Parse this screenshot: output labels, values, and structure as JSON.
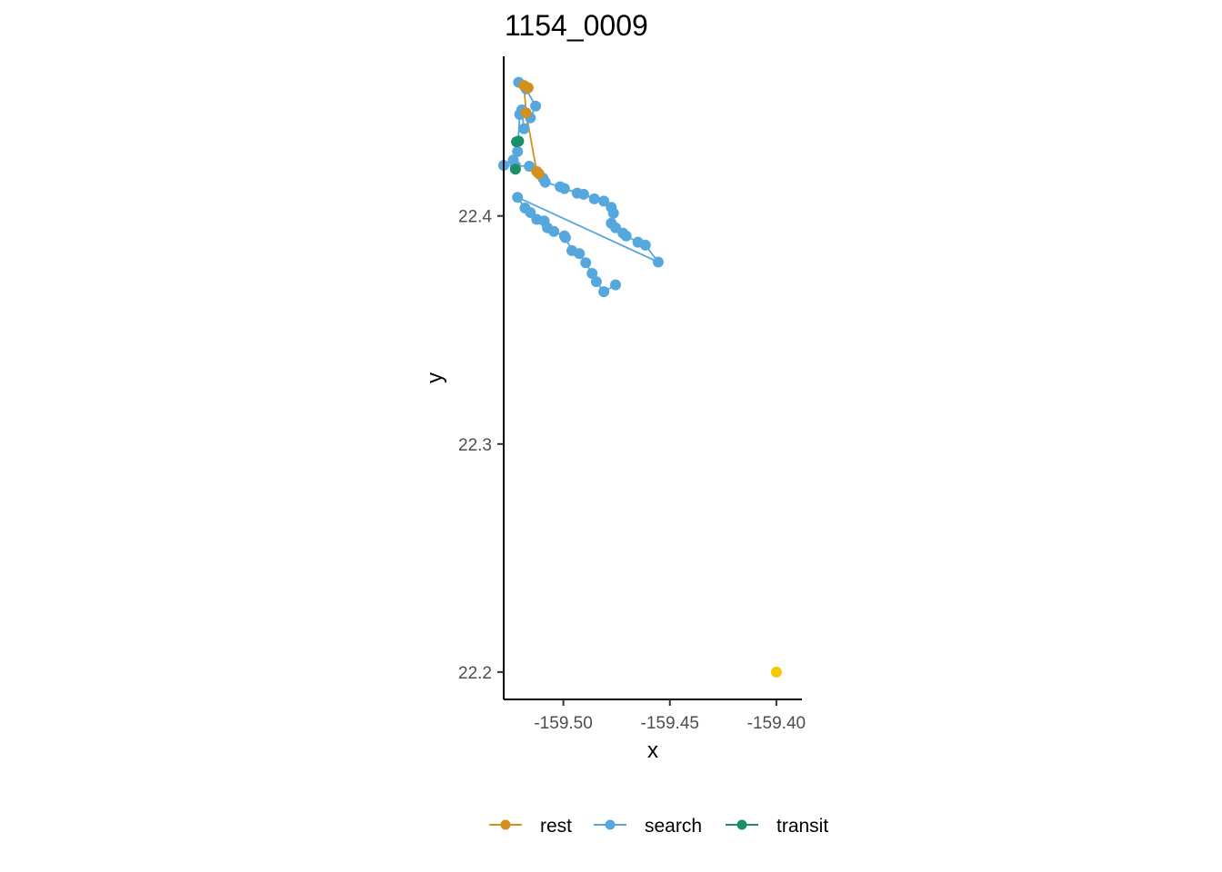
{
  "chart_data": {
    "type": "scatter",
    "title": "1154_0009",
    "xlabel": "x",
    "ylabel": "y",
    "xlim": [
      -159.528,
      -159.388
    ],
    "ylim": [
      22.188,
      22.47
    ],
    "x_ticks": [
      -159.5,
      -159.45,
      -159.4
    ],
    "x_tick_labels": [
      "-159.50",
      "-159.45",
      "-159.40"
    ],
    "y_ticks": [
      22.2,
      22.3,
      22.4
    ],
    "y_tick_labels": [
      "22.2",
      "22.3",
      "22.4"
    ],
    "grid": false,
    "legend_position": "bottom",
    "colors": {
      "rest": "#D4901E",
      "search": "#56A7DE",
      "transit": "#1A8F6A",
      "marker": "#F5C800"
    },
    "series": [
      {
        "name": "search",
        "color": "#56A7DE",
        "points": [
          [
            -159.521,
            22.4586
          ],
          [
            -159.5175,
            22.4557
          ],
          [
            -159.513,
            22.4482
          ],
          [
            -159.5155,
            22.443
          ],
          [
            -159.5185,
            22.4382
          ],
          [
            -159.5195,
            22.4465
          ],
          [
            -159.5205,
            22.4445
          ],
          [
            -159.5215,
            22.4282
          ],
          [
            -159.5235,
            22.4245
          ],
          [
            -159.528,
            22.4222
          ],
          [
            -159.5225,
            22.422
          ],
          [
            -159.516,
            22.4218
          ],
          [
            -159.5095,
            22.4165
          ],
          [
            -159.5085,
            22.4148
          ],
          [
            -159.5015,
            22.4128
          ],
          [
            -159.4995,
            22.412
          ],
          [
            -159.4935,
            22.41
          ],
          [
            -159.4905,
            22.4095
          ],
          [
            -159.4855,
            22.4075
          ],
          [
            -159.481,
            22.4065
          ],
          [
            -159.4775,
            22.4038
          ],
          [
            -159.4765,
            22.4012
          ],
          [
            -159.4775,
            22.3968
          ],
          [
            -159.4755,
            22.3948
          ],
          [
            -159.472,
            22.3925
          ],
          [
            -159.4705,
            22.3912
          ],
          [
            -159.465,
            22.3885
          ],
          [
            -159.4615,
            22.3872
          ],
          [
            -159.4555,
            22.3798
          ],
          [
            -159.5215,
            22.4082
          ],
          [
            -159.518,
            22.4035
          ],
          [
            -159.5155,
            22.4015
          ],
          [
            -159.5125,
            22.3985
          ],
          [
            -159.509,
            22.3978
          ],
          [
            -159.5075,
            22.3948
          ],
          [
            -159.5045,
            22.3932
          ],
          [
            -159.4995,
            22.3912
          ],
          [
            -159.499,
            22.3905
          ],
          [
            -159.496,
            22.3848
          ],
          [
            -159.4925,
            22.3835
          ],
          [
            -159.4895,
            22.3795
          ],
          [
            -159.4865,
            22.3748
          ],
          [
            -159.4845,
            22.3712
          ],
          [
            -159.481,
            22.3668
          ],
          [
            -159.4755,
            22.3698
          ]
        ]
      },
      {
        "name": "rest",
        "color": "#D4901E",
        "points": [
          [
            -159.5165,
            22.4562
          ],
          [
            -159.5185,
            22.4572
          ],
          [
            -159.5175,
            22.4452
          ],
          [
            -159.5125,
            22.4195
          ],
          [
            -159.5115,
            22.4185
          ]
        ]
      },
      {
        "name": "transit",
        "color": "#1A8F6A",
        "points": [
          [
            -159.521,
            22.4328
          ],
          [
            -159.522,
            22.4325
          ],
          [
            -159.5225,
            22.4205
          ]
        ]
      },
      {
        "name": "",
        "color": "#F5C800",
        "points": [
          [
            -159.4,
            22.2
          ]
        ]
      }
    ],
    "legend": [
      {
        "label": "rest",
        "color": "#D4901E"
      },
      {
        "label": "search",
        "color": "#56A7DE"
      },
      {
        "label": "transit",
        "color": "#1A8F6A"
      }
    ]
  }
}
